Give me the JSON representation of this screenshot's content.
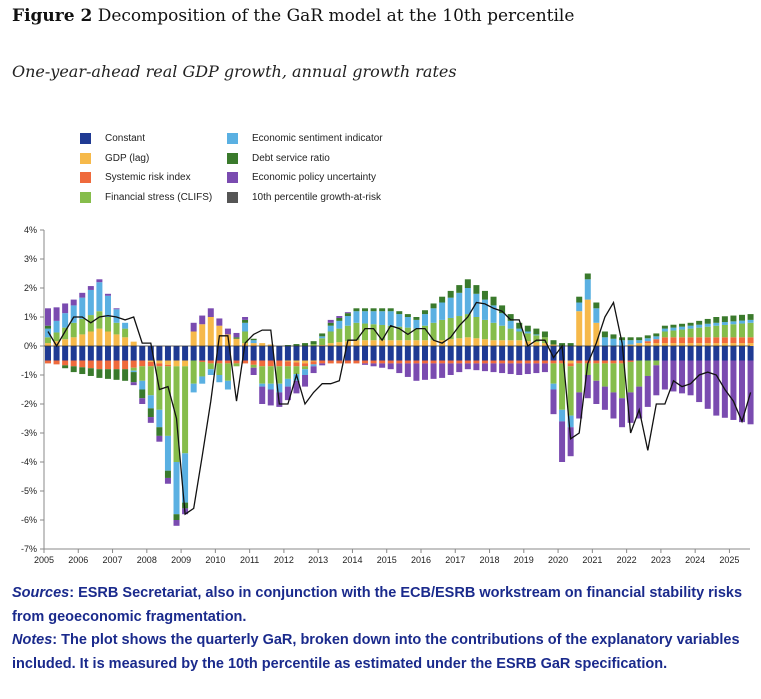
{
  "figure": {
    "label": "Figure 2",
    "title": "Decomposition of the GaR model at the 10th percentile",
    "subtitle": "One-year-ahead real GDP growth, annual growth rates"
  },
  "notes": {
    "sources_label": "Sources",
    "sources_text": ": ESRB Secretariat, also in conjunction with the ECB/ESRB workstream on financial stability risks from geoeconomic fragmentation.",
    "notes_label": "Notes",
    "notes_text": ": The plot shows the quarterly GaR, broken down into the contributions of the explanatory variables included. It is measured by the 10th percentile as estimated under the ESRB GaR specification."
  },
  "chart_data": {
    "type": "bar",
    "stacked": true,
    "title": "Decomposition of the GaR model at the 10th percentile",
    "ylabel": "One-year-ahead real GDP growth, annual growth rates",
    "ylim": [
      -7,
      4
    ],
    "yticks": [
      "4%",
      "3%",
      "2%",
      "1%",
      "0%",
      "-1%",
      "-2%",
      "-3%",
      "-4%",
      "-5%",
      "-6%",
      "-7%"
    ],
    "xticks": [
      "2005",
      "2006",
      "2007",
      "2008",
      "2009",
      "2010",
      "2011",
      "2012",
      "2013",
      "2014",
      "2015",
      "2016",
      "2017",
      "2018",
      "2019",
      "2020",
      "2021",
      "2022",
      "2023",
      "2024",
      "2025"
    ],
    "x_start": 2005.0,
    "x_end": 2025.6,
    "bar_step": 0.25,
    "legend": [
      {
        "name": "Constant",
        "color": "#1f3a93"
      },
      {
        "name": "GDP (lag)",
        "color": "#f6b94a"
      },
      {
        "name": "Systemic risk index",
        "color": "#ef6a3c"
      },
      {
        "name": "Financial stress (CLIFS)",
        "color": "#86bd4b"
      },
      {
        "name": "Economic sentiment indicator",
        "color": "#5ab0e2"
      },
      {
        "name": "Debt service ratio",
        "color": "#3a7a2c"
      },
      {
        "name": "Economic policy uncertainty",
        "color": "#7a4bb0"
      },
      {
        "name": "10th percentile growth-at-risk",
        "color": "#555555"
      }
    ],
    "constant": -0.5,
    "anchors": [
      {
        "t": 2005.0,
        "gdp": 0.1,
        "sri": -0.1,
        "fin": 0.2,
        "esi": 0.3,
        "dsr": 0.1,
        "epu": 0.6
      },
      {
        "t": 2005.75,
        "gdp": 0.3,
        "sri": -0.2,
        "fin": 0.5,
        "esi": 0.6,
        "dsr": -0.2,
        "epu": 0.2
      },
      {
        "t": 2006.5,
        "gdp": 0.6,
        "sri": -0.3,
        "fin": 0.6,
        "esi": 1.0,
        "dsr": -0.3,
        "epu": 0.1
      },
      {
        "t": 2007.25,
        "gdp": 0.3,
        "sri": -0.3,
        "fin": 0.3,
        "esi": 0.2,
        "dsr": -0.4,
        "epu": 0.0
      },
      {
        "t": 2007.75,
        "gdp": 0.0,
        "sri": -0.2,
        "fin": -0.5,
        "esi": -0.3,
        "dsr": -0.3,
        "epu": -0.2
      },
      {
        "t": 2008.25,
        "gdp": -0.1,
        "sri": -0.1,
        "fin": -1.5,
        "esi": -0.6,
        "dsr": -0.3,
        "epu": -0.2
      },
      {
        "t": 2008.75,
        "gdp": -0.2,
        "sri": 0.0,
        "fin": -3.3,
        "esi": -1.8,
        "dsr": -0.2,
        "epu": -0.2
      },
      {
        "t": 2009.0,
        "gdp": -0.2,
        "sri": 0.0,
        "fin": -3.0,
        "esi": -1.7,
        "dsr": -0.2,
        "epu": -0.2
      },
      {
        "t": 2009.25,
        "gdp": 0.5,
        "sri": 0.0,
        "fin": -0.8,
        "esi": -0.3,
        "dsr": 0.0,
        "epu": 0.3
      },
      {
        "t": 2009.75,
        "gdp": 1.0,
        "sri": -0.1,
        "fin": -0.2,
        "esi": -0.2,
        "dsr": 0.0,
        "epu": 0.3
      },
      {
        "t": 2010.25,
        "gdp": 0.4,
        "sri": -0.1,
        "fin": -0.6,
        "esi": -0.3,
        "dsr": 0.0,
        "epu": 0.2
      },
      {
        "t": 2010.75,
        "gdp": 0.1,
        "sri": -0.1,
        "fin": 0.4,
        "esi": 0.3,
        "dsr": 0.1,
        "epu": 0.1
      },
      {
        "t": 2011.25,
        "gdp": 0.1,
        "sri": -0.2,
        "fin": -0.6,
        "esi": -0.1,
        "dsr": 0.0,
        "epu": -0.6
      },
      {
        "t": 2011.75,
        "gdp": 0.0,
        "sri": -0.2,
        "fin": -0.6,
        "esi": -0.3,
        "dsr": 0.0,
        "epu": -0.5
      },
      {
        "t": 2012.5,
        "gdp": -0.1,
        "sri": -0.1,
        "fin": -0.1,
        "esi": -0.2,
        "dsr": 0.1,
        "epu": -0.4
      },
      {
        "t": 2013.25,
        "gdp": 0.1,
        "sri": -0.1,
        "fin": 0.4,
        "esi": 0.2,
        "dsr": 0.1,
        "epu": 0.1
      },
      {
        "t": 2014.0,
        "gdp": 0.2,
        "sri": -0.1,
        "fin": 0.6,
        "esi": 0.4,
        "dsr": 0.1,
        "epu": 0.0
      },
      {
        "t": 2015.0,
        "gdp": 0.2,
        "sri": -0.1,
        "fin": 0.5,
        "esi": 0.5,
        "dsr": 0.1,
        "epu": -0.2
      },
      {
        "t": 2015.75,
        "gdp": 0.2,
        "sri": -0.1,
        "fin": 0.4,
        "esi": 0.3,
        "dsr": 0.1,
        "epu": -0.6
      },
      {
        "t": 2016.5,
        "gdp": 0.2,
        "sri": -0.1,
        "fin": 0.7,
        "esi": 0.6,
        "dsr": 0.2,
        "epu": -0.5
      },
      {
        "t": 2017.25,
        "gdp": 0.3,
        "sri": -0.1,
        "fin": 0.8,
        "esi": 0.9,
        "dsr": 0.3,
        "epu": -0.2
      },
      {
        "t": 2018.0,
        "gdp": 0.2,
        "sri": -0.1,
        "fin": 0.6,
        "esi": 0.6,
        "dsr": 0.3,
        "epu": -0.3
      },
      {
        "t": 2018.75,
        "gdp": 0.2,
        "sri": -0.1,
        "fin": 0.3,
        "esi": 0.1,
        "dsr": 0.2,
        "epu": -0.4
      },
      {
        "t": 2019.5,
        "gdp": 0.1,
        "sri": -0.1,
        "fin": 0.2,
        "esi": 0.0,
        "dsr": 0.2,
        "epu": -0.3
      },
      {
        "t": 2020.0,
        "gdp": 0.0,
        "sri": -0.1,
        "fin": -1.6,
        "esi": -0.4,
        "dsr": 0.1,
        "epu": -1.4
      },
      {
        "t": 2020.25,
        "gdp": -0.1,
        "sri": -0.1,
        "fin": -1.7,
        "esi": -0.4,
        "dsr": 0.1,
        "epu": -1.0
      },
      {
        "t": 2020.5,
        "gdp": 1.2,
        "sri": -0.1,
        "fin": -1.0,
        "esi": 0.3,
        "dsr": 0.2,
        "epu": -0.9
      },
      {
        "t": 2020.75,
        "gdp": 1.6,
        "sri": -0.1,
        "fin": -0.4,
        "esi": 0.7,
        "dsr": 0.2,
        "epu": -0.8
      },
      {
        "t": 2021.25,
        "gdp": 0.0,
        "sri": -0.1,
        "fin": -0.8,
        "esi": 0.3,
        "dsr": 0.2,
        "epu": -0.8
      },
      {
        "t": 2021.75,
        "gdp": 0.0,
        "sri": -0.1,
        "fin": -1.2,
        "esi": 0.2,
        "dsr": 0.1,
        "epu": -1.0
      },
      {
        "t": 2022.25,
        "gdp": 0.1,
        "sri": 0.0,
        "fin": -0.9,
        "esi": 0.1,
        "dsr": 0.1,
        "epu": -1.1
      },
      {
        "t": 2023.0,
        "gdp": 0.1,
        "sri": 0.2,
        "fin": 0.2,
        "esi": 0.1,
        "dsr": 0.1,
        "epu": -1.0
      },
      {
        "t": 2023.75,
        "gdp": 0.1,
        "sri": 0.2,
        "fin": 0.3,
        "esi": 0.1,
        "dsr": 0.1,
        "epu": -1.2
      },
      {
        "t": 2024.5,
        "gdp": 0.1,
        "sri": 0.2,
        "fin": 0.4,
        "esi": 0.1,
        "dsr": 0.2,
        "epu": -1.9
      },
      {
        "t": 2025.5,
        "gdp": 0.1,
        "sri": 0.2,
        "fin": 0.5,
        "esi": 0.1,
        "dsr": 0.2,
        "epu": -2.2
      }
    ],
    "gar_line": [
      {
        "t": 2005.0,
        "v": 0.5
      },
      {
        "t": 2005.25,
        "v": 0.0
      },
      {
        "t": 2005.5,
        "v": 0.5
      },
      {
        "t": 2005.75,
        "v": 1.0
      },
      {
        "t": 2006.0,
        "v": 1.0
      },
      {
        "t": 2006.25,
        "v": 0.8
      },
      {
        "t": 2006.5,
        "v": 1.0
      },
      {
        "t": 2006.75,
        "v": 1.05
      },
      {
        "t": 2007.0,
        "v": 1.0
      },
      {
        "t": 2007.25,
        "v": 0.9
      },
      {
        "t": 2007.5,
        "v": 1.0
      },
      {
        "t": 2007.75,
        "v": 0.1
      },
      {
        "t": 2008.0,
        "v": 0.1
      },
      {
        "t": 2008.25,
        "v": -1.5
      },
      {
        "t": 2008.5,
        "v": -1.4
      },
      {
        "t": 2008.75,
        "v": -2.5
      },
      {
        "t": 2009.0,
        "v": -5.8
      },
      {
        "t": 2009.25,
        "v": -5.6
      },
      {
        "t": 2009.5,
        "v": -3.8
      },
      {
        "t": 2009.75,
        "v": -1.9
      },
      {
        "t": 2010.0,
        "v": 0.35
      },
      {
        "t": 2010.25,
        "v": 0.35
      },
      {
        "t": 2010.5,
        "v": -1.9
      },
      {
        "t": 2010.75,
        "v": 0.1
      },
      {
        "t": 2011.0,
        "v": 0.4
      },
      {
        "t": 2011.25,
        "v": 0.55
      },
      {
        "t": 2011.5,
        "v": 0.55
      },
      {
        "t": 2011.75,
        "v": -2.0
      },
      {
        "t": 2012.0,
        "v": -2.0
      },
      {
        "t": 2012.25,
        "v": -1.0
      },
      {
        "t": 2012.5,
        "v": -2.0
      },
      {
        "t": 2012.75,
        "v": -1.6
      },
      {
        "t": 2013.0,
        "v": -1.3
      },
      {
        "t": 2013.25,
        "v": -1.3
      },
      {
        "t": 2013.5,
        "v": -1.2
      },
      {
        "t": 2013.75,
        "v": 0.2
      },
      {
        "t": 2014.0,
        "v": 0.2
      },
      {
        "t": 2014.25,
        "v": 0.6
      },
      {
        "t": 2014.5,
        "v": 0.6
      },
      {
        "t": 2014.75,
        "v": 0.2
      },
      {
        "t": 2015.0,
        "v": 0.7
      },
      {
        "t": 2015.25,
        "v": 0.6
      },
      {
        "t": 2015.5,
        "v": 0.4
      },
      {
        "t": 2015.75,
        "v": 0.6
      },
      {
        "t": 2016.0,
        "v": 0.6
      },
      {
        "t": 2016.25,
        "v": 0.2
      },
      {
        "t": 2016.5,
        "v": 0.1
      },
      {
        "t": 2016.75,
        "v": 0.3
      },
      {
        "t": 2017.0,
        "v": 0.7
      },
      {
        "t": 2017.25,
        "v": 1.0
      },
      {
        "t": 2017.5,
        "v": 1.5
      },
      {
        "t": 2017.75,
        "v": 1.45
      },
      {
        "t": 2018.0,
        "v": 1.3
      },
      {
        "t": 2018.25,
        "v": 1.2
      },
      {
        "t": 2018.5,
        "v": 0.9
      },
      {
        "t": 2018.75,
        "v": 0.9
      },
      {
        "t": 2019.0,
        "v": 0.0
      },
      {
        "t": 2019.25,
        "v": 0.2
      },
      {
        "t": 2019.5,
        "v": 0.2
      },
      {
        "t": 2019.75,
        "v": -0.4
      },
      {
        "t": 2020.0,
        "v": 0.0
      },
      {
        "t": 2020.25,
        "v": -3.2
      },
      {
        "t": 2020.5,
        "v": -3.0
      },
      {
        "t": 2020.75,
        "v": -0.6
      },
      {
        "t": 2021.0,
        "v": 0.1
      },
      {
        "t": 2021.25,
        "v": 1.0
      },
      {
        "t": 2021.5,
        "v": 1.5
      },
      {
        "t": 2021.75,
        "v": 0.1
      },
      {
        "t": 2022.0,
        "v": -3.0
      },
      {
        "t": 2022.25,
        "v": -2.2
      },
      {
        "t": 2022.5,
        "v": -3.6
      },
      {
        "t": 2022.75,
        "v": -2.0
      },
      {
        "t": 2023.0,
        "v": -2.0
      },
      {
        "t": 2023.25,
        "v": -1.2
      },
      {
        "t": 2023.5,
        "v": -1.4
      },
      {
        "t": 2023.75,
        "v": -1.3
      },
      {
        "t": 2024.0,
        "v": -1.0
      },
      {
        "t": 2024.25,
        "v": -0.9
      },
      {
        "t": 2024.5,
        "v": -1.0
      },
      {
        "t": 2024.75,
        "v": -1.5
      },
      {
        "t": 2025.0,
        "v": -1.9
      },
      {
        "t": 2025.25,
        "v": -2.6
      },
      {
        "t": 2025.5,
        "v": -1.6
      }
    ]
  }
}
